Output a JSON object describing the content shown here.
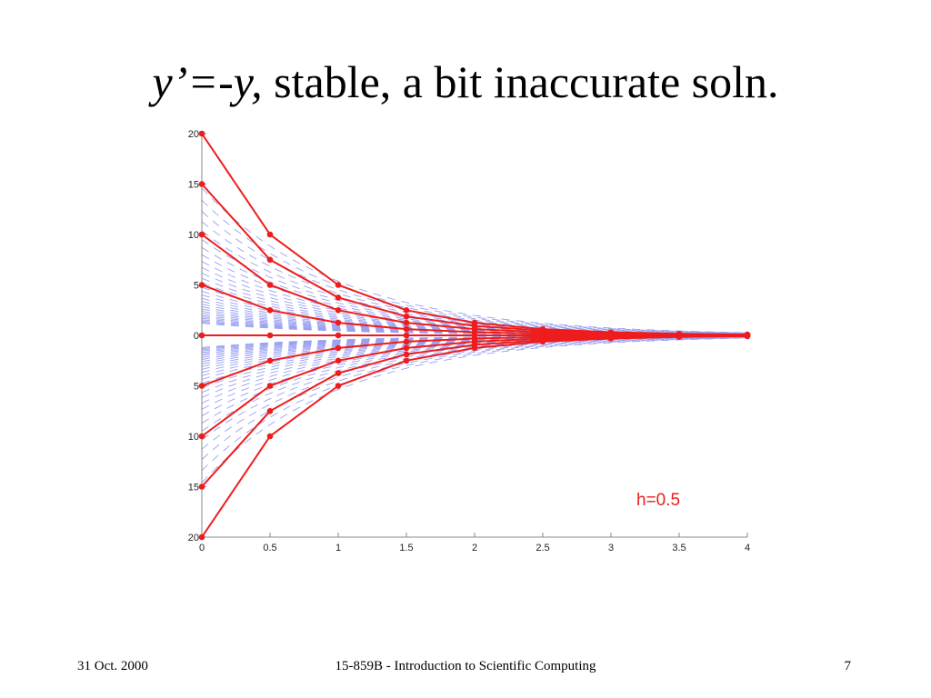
{
  "slide": {
    "title_italic_1": "y’=-y,",
    "title_rest": " stable, a bit inaccurate soln.",
    "footer_date": "31 Oct. 2000",
    "footer_course": "15-859B - Introduction to Scientific Computing",
    "page_number": "7"
  },
  "chart_data": {
    "type": "line",
    "title": "",
    "xlabel": "",
    "ylabel": "",
    "annotation": "h=0.5",
    "xlim": [
      0,
      4
    ],
    "ylim": [
      -20,
      20
    ],
    "x_ticks": [
      0,
      0.5,
      1,
      1.5,
      2,
      2.5,
      3,
      3.5,
      4
    ],
    "x_tick_labels": [
      "0",
      "0.5",
      "1",
      "1.5",
      "2",
      "2.5",
      "3",
      "3.5",
      "4"
    ],
    "y_ticks": [
      20,
      15,
      10,
      5,
      0,
      -5,
      -10,
      -15,
      -20
    ],
    "y_tick_labels": [
      "20",
      "15",
      "10",
      "5",
      "0",
      "5",
      "10",
      "15",
      "20"
    ],
    "x": [
      0,
      0.5,
      1,
      1.5,
      2,
      2.5,
      3,
      3.5,
      4
    ],
    "series": [
      {
        "values": [
          20,
          10,
          5,
          2.5,
          1.25,
          0.625,
          0.3125,
          0.15625,
          0.078125
        ]
      },
      {
        "values": [
          15,
          7.5,
          3.75,
          1.875,
          0.9375,
          0.46875,
          0.234375,
          0.1171875,
          0.05859375
        ]
      },
      {
        "values": [
          10,
          5,
          2.5,
          1.25,
          0.625,
          0.3125,
          0.15625,
          0.078125,
          0.0390625
        ]
      },
      {
        "values": [
          5,
          2.5,
          1.25,
          0.625,
          0.3125,
          0.15625,
          0.078125,
          0.0390625,
          0.01953125
        ]
      },
      {
        "values": [
          0,
          0,
          0,
          0,
          0,
          0,
          0,
          0,
          0
        ]
      },
      {
        "values": [
          -5,
          -2.5,
          -1.25,
          -0.625,
          -0.3125,
          -0.15625,
          -0.078125,
          -0.0390625,
          -0.01953125
        ]
      },
      {
        "values": [
          -10,
          -5,
          -2.5,
          -1.25,
          -0.625,
          -0.3125,
          -0.15625,
          -0.078125,
          -0.0390625
        ]
      },
      {
        "values": [
          -15,
          -7.5,
          -3.75,
          -1.875,
          -0.9375,
          -0.46875,
          -0.234375,
          -0.1171875,
          -0.05859375
        ]
      },
      {
        "values": [
          -20,
          -10,
          -5,
          -2.5,
          -1.25,
          -0.625,
          -0.3125,
          -0.15625,
          -0.078125
        ]
      }
    ],
    "background_curves": {
      "family": "exact solutions y = c·e^(-x)",
      "count": 60,
      "line_style": "dashed"
    },
    "grid": false,
    "colors": {
      "numeric": "#ee1c1c",
      "exact": "#9aa0f0",
      "axis": "#888888",
      "annotation": "#e8201e"
    }
  }
}
